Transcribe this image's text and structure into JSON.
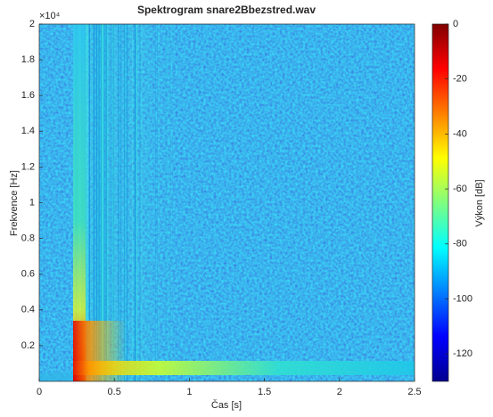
{
  "chart_data": {
    "type": "spectrogram",
    "title": "Spektrogram snare2Bbezstred.wav",
    "x_label": "Čas [s]",
    "y_label": "Frekvence [Hz]",
    "y_exponent": "×10⁴",
    "xlim": [
      0,
      2.5
    ],
    "xticks": [
      0,
      0.5,
      1,
      1.5,
      2,
      2.5
    ],
    "ylim": [
      0,
      2
    ],
    "yticks": [
      0.2,
      0.4,
      0.6,
      0.8,
      1,
      1.2,
      1.4,
      1.6,
      1.8,
      2
    ],
    "colorbar_label": "Výkon [dB]",
    "clim": [
      -130,
      0
    ],
    "cticks": [
      -120,
      -100,
      -80,
      -60,
      -40,
      -20,
      0
    ],
    "colormap": "jet"
  }
}
